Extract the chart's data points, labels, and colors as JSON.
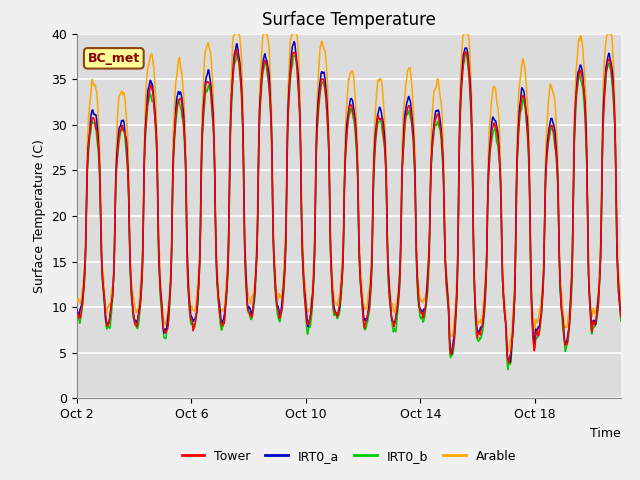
{
  "title": "Surface Temperature",
  "ylabel": "Surface Temperature (C)",
  "xlabel": "Time",
  "annotation": "BC_met",
  "ylim": [
    0,
    40
  ],
  "tick_labels": [
    "Oct 2",
    "Oct 6",
    "Oct 10",
    "Oct 14",
    "Oct 18"
  ],
  "tick_positions": [
    0,
    4,
    8,
    12,
    16
  ],
  "series_colors": {
    "Tower": "#FF0000",
    "IRT0_a": "#0000CC",
    "IRT0_b": "#00CC00",
    "Arable": "#FFA500"
  },
  "background_color": "#DCDCDC",
  "plot_bg_color": "#DCDCDC",
  "grid_color": "#FFFFFF",
  "legend_labels": [
    "Tower",
    "IRT0_a",
    "IRT0_b",
    "Arable"
  ],
  "legend_colors": [
    "#FF0000",
    "#0000CC",
    "#00CC00",
    "#FFA500"
  ],
  "fig_bg": "#F0F0F0"
}
